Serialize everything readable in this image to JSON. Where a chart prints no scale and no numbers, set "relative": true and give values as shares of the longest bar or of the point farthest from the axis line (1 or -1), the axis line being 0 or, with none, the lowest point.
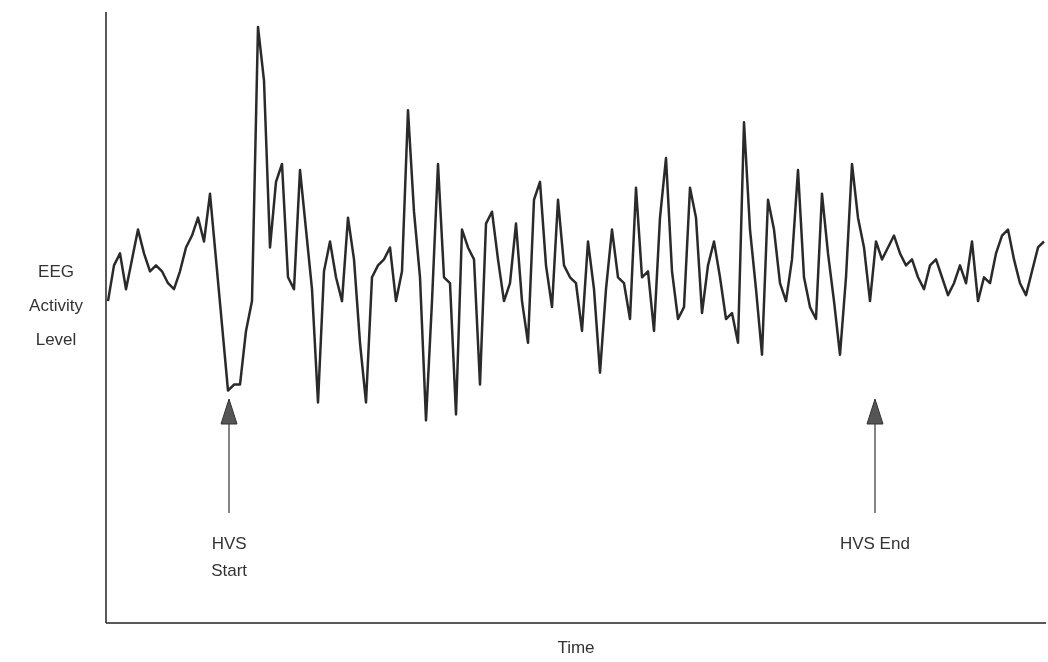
{
  "chart_data": {
    "type": "line",
    "relative": true,
    "xlabel": "Time",
    "ylabel": "EEG Activity Level",
    "color": "#2a2a2a",
    "annotations": [
      "HVS Start",
      "HVS End"
    ],
    "categories": [
      null,
      null,
      null,
      null,
      null,
      null,
      null,
      null,
      null,
      null,
      null,
      null,
      null,
      null,
      null,
      null,
      null,
      null,
      null,
      null,
      null,
      null,
      null,
      null,
      null,
      null,
      null,
      null,
      null,
      null,
      null,
      null,
      null,
      null,
      null,
      null,
      null,
      null,
      null,
      null,
      null,
      null,
      null,
      null,
      null,
      null,
      null,
      null,
      null,
      null,
      null,
      null,
      null,
      null,
      null,
      null,
      null,
      null,
      null,
      null,
      null,
      null,
      null,
      null,
      null,
      null,
      null,
      null,
      null,
      null,
      null,
      null,
      null,
      null,
      null,
      null,
      null,
      null,
      null,
      null,
      null,
      null,
      null,
      null,
      null,
      null,
      null,
      null,
      null,
      null,
      null,
      null,
      null,
      null,
      null,
      null,
      null,
      null,
      null,
      null,
      null,
      null,
      null,
      null,
      null,
      null,
      null,
      null,
      null,
      null,
      null,
      null,
      null,
      null,
      null,
      null,
      null,
      null,
      null,
      null,
      null,
      null,
      null,
      null,
      null,
      null,
      null,
      null,
      null,
      null,
      null,
      null,
      null,
      null,
      null,
      null,
      null,
      null,
      null,
      null,
      null,
      null,
      null,
      null,
      null,
      null,
      null,
      null,
      null,
      null,
      null,
      null,
      null,
      null,
      null,
      null,
      null
    ],
    "values": [
      0.54,
      0.6,
      0.62,
      0.56,
      0.61,
      0.66,
      0.62,
      0.59,
      0.6,
      0.59,
      0.57,
      0.56,
      0.59,
      0.63,
      0.65,
      0.68,
      0.64,
      0.72,
      0.61,
      0.5,
      0.39,
      0.4,
      0.4,
      0.49,
      0.54,
      1,
      0.91,
      0.63,
      0.74,
      0.77,
      0.58,
      0.56,
      0.76,
      0.66,
      0.56,
      0.37,
      0.59,
      0.64,
      0.58,
      0.54,
      0.68,
      0.61,
      0.47,
      0.37,
      0.58,
      0.6,
      0.61,
      0.63,
      0.54,
      0.59,
      0.86,
      0.69,
      0.58,
      0.34,
      0.54,
      0.77,
      0.58,
      0.57,
      0.35,
      0.66,
      0.63,
      0.61,
      0.4,
      0.67,
      0.69,
      0.61,
      0.54,
      0.57,
      0.67,
      0.54,
      0.47,
      0.71,
      0.74,
      0.6,
      0.53,
      0.71,
      0.6,
      0.58,
      0.57,
      0.49,
      0.64,
      0.56,
      0.42,
      0.56,
      0.66,
      0.58,
      0.57,
      0.51,
      0.73,
      0.58,
      0.59,
      0.49,
      0.68,
      0.78,
      0.59,
      0.51,
      0.53,
      0.73,
      0.68,
      0.52,
      0.6,
      0.64,
      0.58,
      0.51,
      0.52,
      0.47,
      0.84,
      0.66,
      0.56,
      0.45,
      0.71,
      0.66,
      0.57,
      0.54,
      0.61,
      0.76,
      0.58,
      0.53,
      0.51,
      0.72,
      0.62,
      0.54,
      0.45,
      0.58,
      0.77,
      0.68,
      0.63,
      0.54,
      0.64,
      0.61,
      0.63,
      0.65,
      0.62,
      0.6,
      0.61,
      0.58,
      0.56,
      0.6,
      0.61,
      0.58,
      0.55,
      0.57,
      0.6,
      0.57,
      0.64,
      0.54,
      0.58,
      0.57,
      0.62,
      0.65,
      0.66,
      0.61,
      0.57,
      0.55,
      0.59,
      0.63,
      0.64
    ]
  }
}
